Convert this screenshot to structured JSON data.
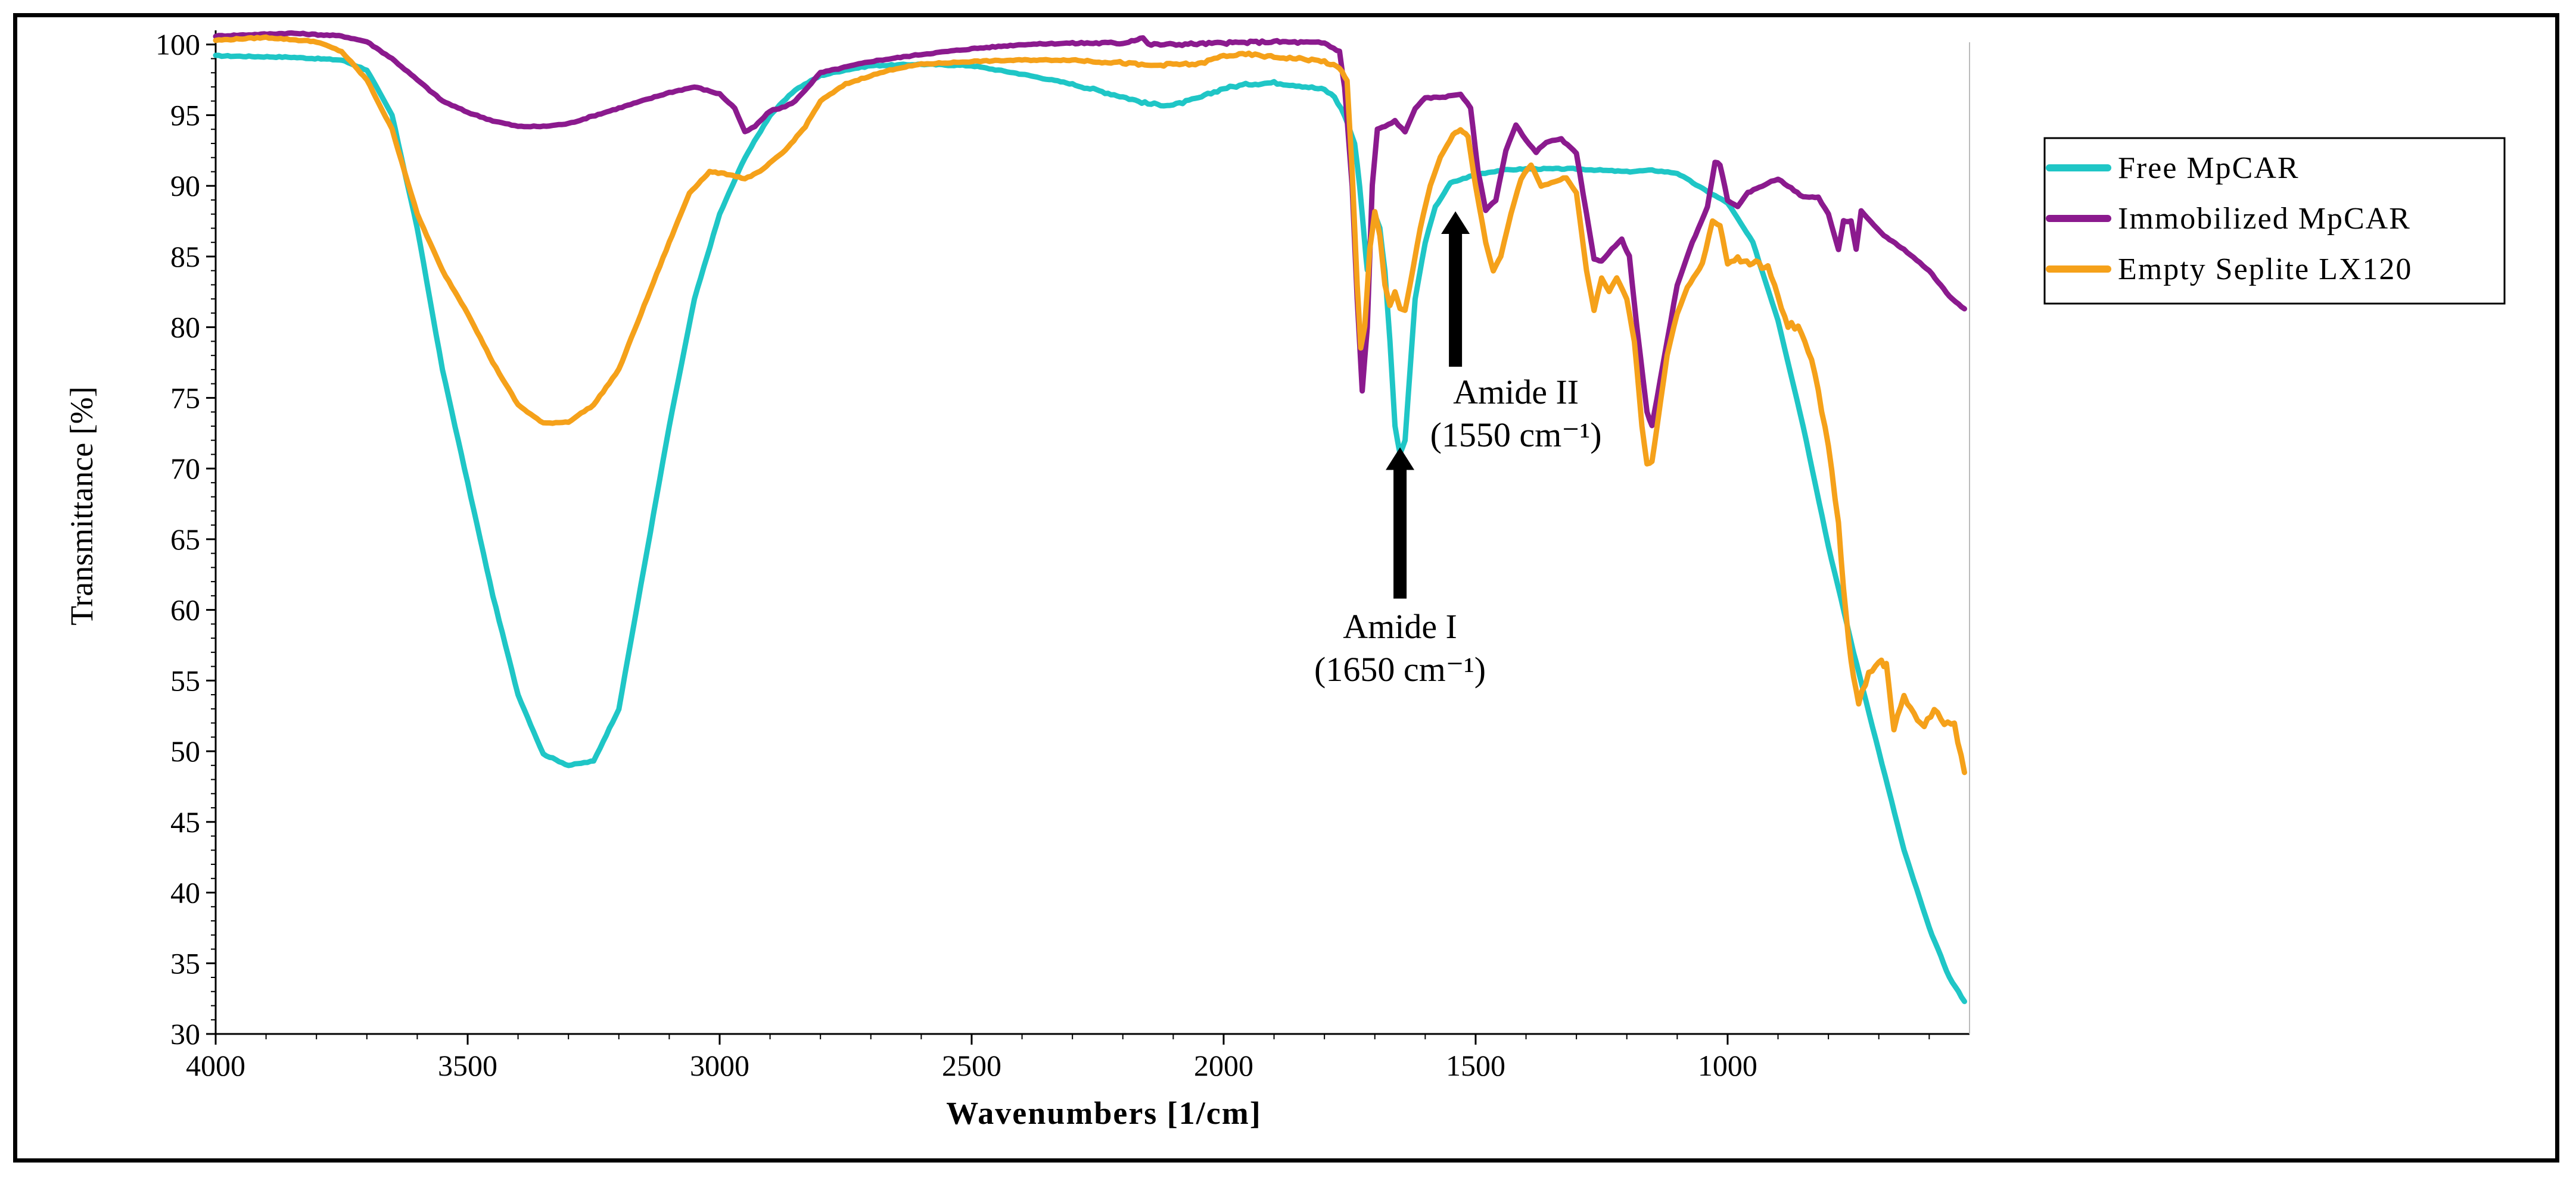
{
  "chart_data": {
    "type": "line",
    "title": "",
    "xlabel": "Wavenumbers [1/cm]",
    "ylabel": "Transmittance [%]",
    "xlim": [
      4000,
      520
    ],
    "ylim": [
      30,
      101
    ],
    "x_ticks": [
      4000,
      3500,
      3000,
      2500,
      2000,
      1500,
      1000
    ],
    "y_ticks": [
      30,
      35,
      40,
      45,
      50,
      55,
      60,
      65,
      70,
      75,
      80,
      85,
      90,
      95,
      100
    ],
    "legend_position": "right",
    "series": [
      {
        "name": "Free MpCAR",
        "color": "#1fc6c6",
        "points": [
          [
            4000,
            99.2
          ],
          [
            3850,
            99.1
          ],
          [
            3750,
            98.9
          ],
          [
            3700,
            98.2
          ],
          [
            3650,
            95
          ],
          [
            3600,
            87
          ],
          [
            3550,
            77
          ],
          [
            3500,
            69
          ],
          [
            3450,
            61
          ],
          [
            3400,
            54
          ],
          [
            3350,
            49.8
          ],
          [
            3300,
            49.0
          ],
          [
            3250,
            49.3
          ],
          [
            3200,
            53
          ],
          [
            3150,
            63
          ],
          [
            3100,
            73
          ],
          [
            3050,
            82
          ],
          [
            3000,
            88
          ],
          [
            2950,
            92
          ],
          [
            2900,
            95
          ],
          [
            2850,
            96.8
          ],
          [
            2800,
            97.8
          ],
          [
            2750,
            98.2
          ],
          [
            2700,
            98.5
          ],
          [
            2600,
            98.6
          ],
          [
            2500,
            98.5
          ],
          [
            2400,
            97.9
          ],
          [
            2300,
            97.2
          ],
          [
            2200,
            96.3
          ],
          [
            2150,
            95.8
          ],
          [
            2100,
            95.7
          ],
          [
            2050,
            96.2
          ],
          [
            2000,
            96.9
          ],
          [
            1950,
            97.2
          ],
          [
            1900,
            97.3
          ],
          [
            1850,
            97.1
          ],
          [
            1800,
            96.8
          ],
          [
            1780,
            96.3
          ],
          [
            1760,
            95
          ],
          [
            1740,
            93
          ],
          [
            1730,
            90
          ],
          [
            1720,
            86
          ],
          [
            1715,
            84
          ],
          [
            1710,
            86
          ],
          [
            1700,
            88
          ],
          [
            1690,
            87
          ],
          [
            1680,
            84
          ],
          [
            1670,
            79
          ],
          [
            1660,
            73
          ],
          [
            1650,
            71
          ],
          [
            1640,
            72
          ],
          [
            1630,
            77
          ],
          [
            1620,
            82
          ],
          [
            1600,
            86
          ],
          [
            1580,
            88.5
          ],
          [
            1550,
            90.2
          ],
          [
            1500,
            90.8
          ],
          [
            1450,
            91.1
          ],
          [
            1400,
            91.2
          ],
          [
            1300,
            91.2
          ],
          [
            1200,
            91.0
          ],
          [
            1150,
            91.1
          ],
          [
            1100,
            90.9
          ],
          [
            1050,
            89.8
          ],
          [
            1000,
            88.8
          ],
          [
            950,
            86
          ],
          [
            900,
            80.5
          ],
          [
            850,
            73
          ],
          [
            800,
            64.5
          ],
          [
            750,
            57
          ],
          [
            700,
            50
          ],
          [
            650,
            43
          ],
          [
            600,
            37.5
          ],
          [
            560,
            34
          ],
          [
            530,
            32.3
          ]
        ]
      },
      {
        "name": "Immobilized MpCAR",
        "color": "#8b1a8e",
        "points": [
          [
            4000,
            100.6
          ],
          [
            3850,
            100.8
          ],
          [
            3750,
            100.6
          ],
          [
            3700,
            100.2
          ],
          [
            3650,
            99
          ],
          [
            3600,
            97.5
          ],
          [
            3550,
            96
          ],
          [
            3500,
            95.2
          ],
          [
            3450,
            94.6
          ],
          [
            3400,
            94.2
          ],
          [
            3350,
            94.2
          ],
          [
            3300,
            94.4
          ],
          [
            3200,
            95.5
          ],
          [
            3100,
            96.6
          ],
          [
            3050,
            97
          ],
          [
            3000,
            96.5
          ],
          [
            2970,
            95.5
          ],
          [
            2950,
            93.8
          ],
          [
            2930,
            94.2
          ],
          [
            2900,
            95.3
          ],
          [
            2870,
            95.6
          ],
          [
            2850,
            96
          ],
          [
            2800,
            98
          ],
          [
            2700,
            98.8
          ],
          [
            2600,
            99.3
          ],
          [
            2500,
            99.7
          ],
          [
            2400,
            100
          ],
          [
            2300,
            100.1
          ],
          [
            2200,
            100.1
          ],
          [
            2160,
            100.5
          ],
          [
            2150,
            100
          ],
          [
            2100,
            100
          ],
          [
            2000,
            100.1
          ],
          [
            1900,
            100.2
          ],
          [
            1800,
            100.1
          ],
          [
            1770,
            99.5
          ],
          [
            1760,
            97
          ],
          [
            1745,
            90
          ],
          [
            1735,
            82
          ],
          [
            1725,
            75.5
          ],
          [
            1715,
            80
          ],
          [
            1705,
            90
          ],
          [
            1695,
            94
          ],
          [
            1680,
            94.2
          ],
          [
            1660,
            94.6
          ],
          [
            1640,
            93.8
          ],
          [
            1620,
            95.5
          ],
          [
            1600,
            96.2
          ],
          [
            1560,
            96.3
          ],
          [
            1530,
            96.5
          ],
          [
            1510,
            95.5
          ],
          [
            1495,
            91
          ],
          [
            1480,
            88.3
          ],
          [
            1460,
            89
          ],
          [
            1440,
            92.5
          ],
          [
            1420,
            94.3
          ],
          [
            1400,
            93.2
          ],
          [
            1380,
            92.4
          ],
          [
            1360,
            93.1
          ],
          [
            1330,
            93.3
          ],
          [
            1300,
            92.3
          ],
          [
            1280,
            88
          ],
          [
            1265,
            84.8
          ],
          [
            1250,
            84.7
          ],
          [
            1230,
            85.5
          ],
          [
            1210,
            86.2
          ],
          [
            1195,
            85
          ],
          [
            1180,
            80
          ],
          [
            1160,
            74
          ],
          [
            1150,
            73
          ],
          [
            1140,
            75
          ],
          [
            1120,
            79
          ],
          [
            1100,
            83
          ],
          [
            1070,
            86
          ],
          [
            1040,
            88.5
          ],
          [
            1025,
            91.7
          ],
          [
            1015,
            91.5
          ],
          [
            1000,
            89
          ],
          [
            980,
            88.5
          ],
          [
            960,
            89.5
          ],
          [
            920,
            90.2
          ],
          [
            900,
            90.5
          ],
          [
            880,
            90
          ],
          [
            850,
            89.2
          ],
          [
            820,
            89.2
          ],
          [
            800,
            88
          ],
          [
            780,
            85.5
          ],
          [
            770,
            87.5
          ],
          [
            755,
            87.5
          ],
          [
            745,
            85.5
          ],
          [
            735,
            88.2
          ],
          [
            710,
            87.2
          ],
          [
            690,
            86.5
          ],
          [
            650,
            85.5
          ],
          [
            600,
            84
          ],
          [
            560,
            82.2
          ],
          [
            530,
            81.3
          ]
        ]
      },
      {
        "name": "Empty Seplite LX120",
        "color": "#f5a11a",
        "points": [
          [
            4000,
            100.3
          ],
          [
            3900,
            100.5
          ],
          [
            3800,
            100.2
          ],
          [
            3750,
            99.5
          ],
          [
            3700,
            97.5
          ],
          [
            3650,
            94
          ],
          [
            3600,
            88
          ],
          [
            3550,
            84
          ],
          [
            3500,
            81
          ],
          [
            3450,
            77.5
          ],
          [
            3400,
            74.5
          ],
          [
            3350,
            73.2
          ],
          [
            3300,
            73.3
          ],
          [
            3250,
            74.5
          ],
          [
            3200,
            77
          ],
          [
            3150,
            81.5
          ],
          [
            3100,
            86
          ],
          [
            3060,
            89.5
          ],
          [
            3020,
            91
          ],
          [
            2980,
            90.8
          ],
          [
            2950,
            90.5
          ],
          [
            2920,
            91
          ],
          [
            2870,
            92.5
          ],
          [
            2830,
            94.2
          ],
          [
            2800,
            96
          ],
          [
            2750,
            97.2
          ],
          [
            2700,
            97.8
          ],
          [
            2650,
            98.3
          ],
          [
            2600,
            98.6
          ],
          [
            2500,
            98.8
          ],
          [
            2400,
            98.9
          ],
          [
            2300,
            98.9
          ],
          [
            2200,
            98.7
          ],
          [
            2150,
            98.5
          ],
          [
            2100,
            98.6
          ],
          [
            2050,
            98.6
          ],
          [
            2000,
            99.2
          ],
          [
            1950,
            99.3
          ],
          [
            1900,
            99.1
          ],
          [
            1850,
            99
          ],
          [
            1800,
            98.8
          ],
          [
            1770,
            98.3
          ],
          [
            1755,
            97.5
          ],
          [
            1745,
            91
          ],
          [
            1735,
            83
          ],
          [
            1728,
            78.5
          ],
          [
            1720,
            80
          ],
          [
            1710,
            85.5
          ],
          [
            1700,
            88.2
          ],
          [
            1690,
            86.5
          ],
          [
            1680,
            83
          ],
          [
            1670,
            81.5
          ],
          [
            1660,
            82.5
          ],
          [
            1650,
            81.3
          ],
          [
            1640,
            81.2
          ],
          [
            1630,
            83
          ],
          [
            1610,
            87
          ],
          [
            1590,
            90
          ],
          [
            1570,
            92
          ],
          [
            1545,
            93.6
          ],
          [
            1530,
            94
          ],
          [
            1515,
            93.5
          ],
          [
            1500,
            90
          ],
          [
            1480,
            86
          ],
          [
            1465,
            84
          ],
          [
            1450,
            85
          ],
          [
            1430,
            88
          ],
          [
            1410,
            90.5
          ],
          [
            1390,
            91.5
          ],
          [
            1370,
            90
          ],
          [
            1350,
            90.2
          ],
          [
            1320,
            90.6
          ],
          [
            1300,
            89.5
          ],
          [
            1280,
            84
          ],
          [
            1265,
            81.2
          ],
          [
            1250,
            83.5
          ],
          [
            1235,
            82.5
          ],
          [
            1220,
            83.5
          ],
          [
            1200,
            82
          ],
          [
            1185,
            79
          ],
          [
            1170,
            73
          ],
          [
            1160,
            70.3
          ],
          [
            1150,
            70.5
          ],
          [
            1140,
            73
          ],
          [
            1120,
            78
          ],
          [
            1100,
            81
          ],
          [
            1080,
            82.8
          ],
          [
            1050,
            84.5
          ],
          [
            1030,
            87.5
          ],
          [
            1015,
            87.2
          ],
          [
            1000,
            84.5
          ],
          [
            980,
            84.8
          ],
          [
            950,
            84.5
          ],
          [
            920,
            84.3
          ],
          [
            900,
            82
          ],
          [
            880,
            80.2
          ],
          [
            860,
            80
          ],
          [
            840,
            78.5
          ],
          [
            820,
            75.5
          ],
          [
            800,
            71.5
          ],
          [
            780,
            66
          ],
          [
            770,
            61.5
          ],
          [
            760,
            58
          ],
          [
            750,
            55
          ],
          [
            740,
            53.5
          ],
          [
            720,
            55.5
          ],
          [
            700,
            56.5
          ],
          [
            685,
            56
          ],
          [
            670,
            51.5
          ],
          [
            650,
            54
          ],
          [
            630,
            52.5
          ],
          [
            610,
            51.8
          ],
          [
            590,
            53
          ],
          [
            570,
            52
          ],
          [
            550,
            52
          ],
          [
            530,
            48.5
          ]
        ]
      }
    ],
    "annotations": [
      {
        "label": "Amide I",
        "sublabel": "(1650 cm⁻¹)",
        "x": 1650,
        "arrow_from_y": 60.8,
        "arrow_to_y": 71.5,
        "text_x": 1650,
        "text_y": 58
      },
      {
        "label": "Amide II",
        "sublabel": "(1550 cm⁻¹)",
        "x": 1540,
        "arrow_from_y": 77.2,
        "arrow_to_y": 88.2,
        "text_x": 1420,
        "text_y": 74.6
      }
    ]
  }
}
